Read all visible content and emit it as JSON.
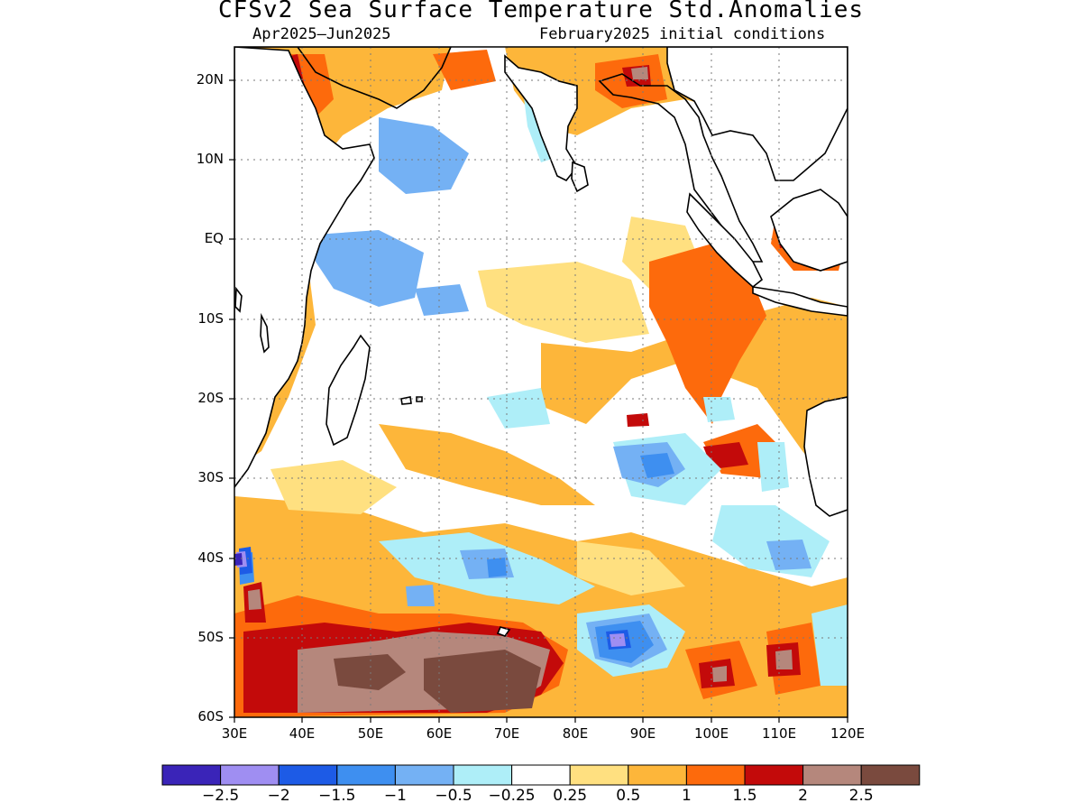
{
  "title": "CFSv2 Sea Surface Temperature Std.Anomalies",
  "subtitle_left": "Apr2025–Jun2025",
  "subtitle_right": "February2025 initial conditions",
  "map": {
    "lon_range": [
      30,
      120
    ],
    "lat_range": [
      -60,
      24
    ],
    "lat_ticks": [
      "20N",
      "10N",
      "EQ",
      "10S",
      "20S",
      "30S",
      "40S",
      "50S",
      "60S"
    ],
    "lon_ticks": [
      "30E",
      "40E",
      "50E",
      "60E",
      "70E",
      "80E",
      "90E",
      "100E",
      "110E",
      "120E"
    ],
    "grid": "dotted"
  },
  "legend": {
    "colors": [
      "#3a24b8",
      "#9f8ef2",
      "#1d5be6",
      "#3e8ff0",
      "#74b1f4",
      "#aeeef8",
      "#ffffff",
      "#ffe080",
      "#fdb63a",
      "#fd6a0c",
      "#c30a0a",
      "#b5877c",
      "#7a4a3e"
    ],
    "labels": [
      "−2.5",
      "−2",
      "−1.5",
      "−1",
      "−0.5",
      "−0.25",
      "0.25",
      "0.5",
      "1",
      "1.5",
      "2",
      "2.5"
    ]
  }
}
